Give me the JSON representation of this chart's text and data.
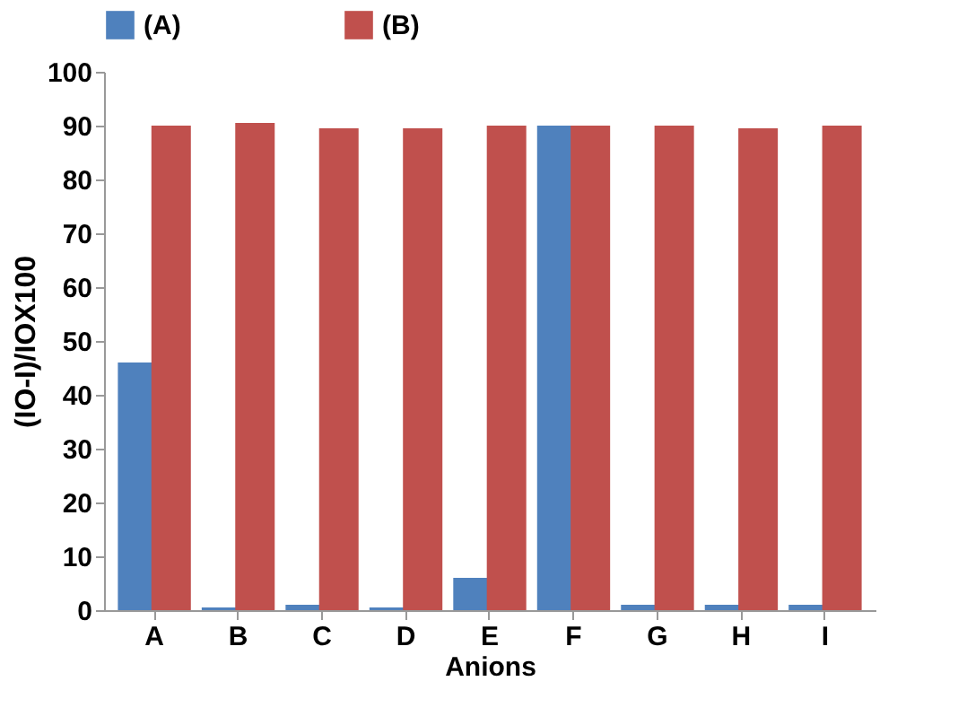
{
  "chart_data": {
    "type": "bar",
    "xlabel": "Anions",
    "ylabel": "(IO-I)/IOX100",
    "categories": [
      "A",
      "B",
      "C",
      "D",
      "E",
      "F",
      "G",
      "H",
      "I"
    ],
    "series": [
      {
        "name": "(A)",
        "color": "#4f81bd",
        "values": [
          46,
          0.5,
          1,
          0.5,
          6,
          90,
          1,
          1,
          1
        ]
      },
      {
        "name": "(B)",
        "color": "#c0504d",
        "values": [
          90,
          90.5,
          89.5,
          89.5,
          90,
          90,
          90,
          89.5,
          90
        ]
      }
    ],
    "ylim": [
      0,
      100
    ],
    "yticks": [
      0,
      10,
      20,
      30,
      40,
      50,
      60,
      70,
      80,
      90,
      100
    ],
    "grid": false,
    "legend": "top"
  }
}
